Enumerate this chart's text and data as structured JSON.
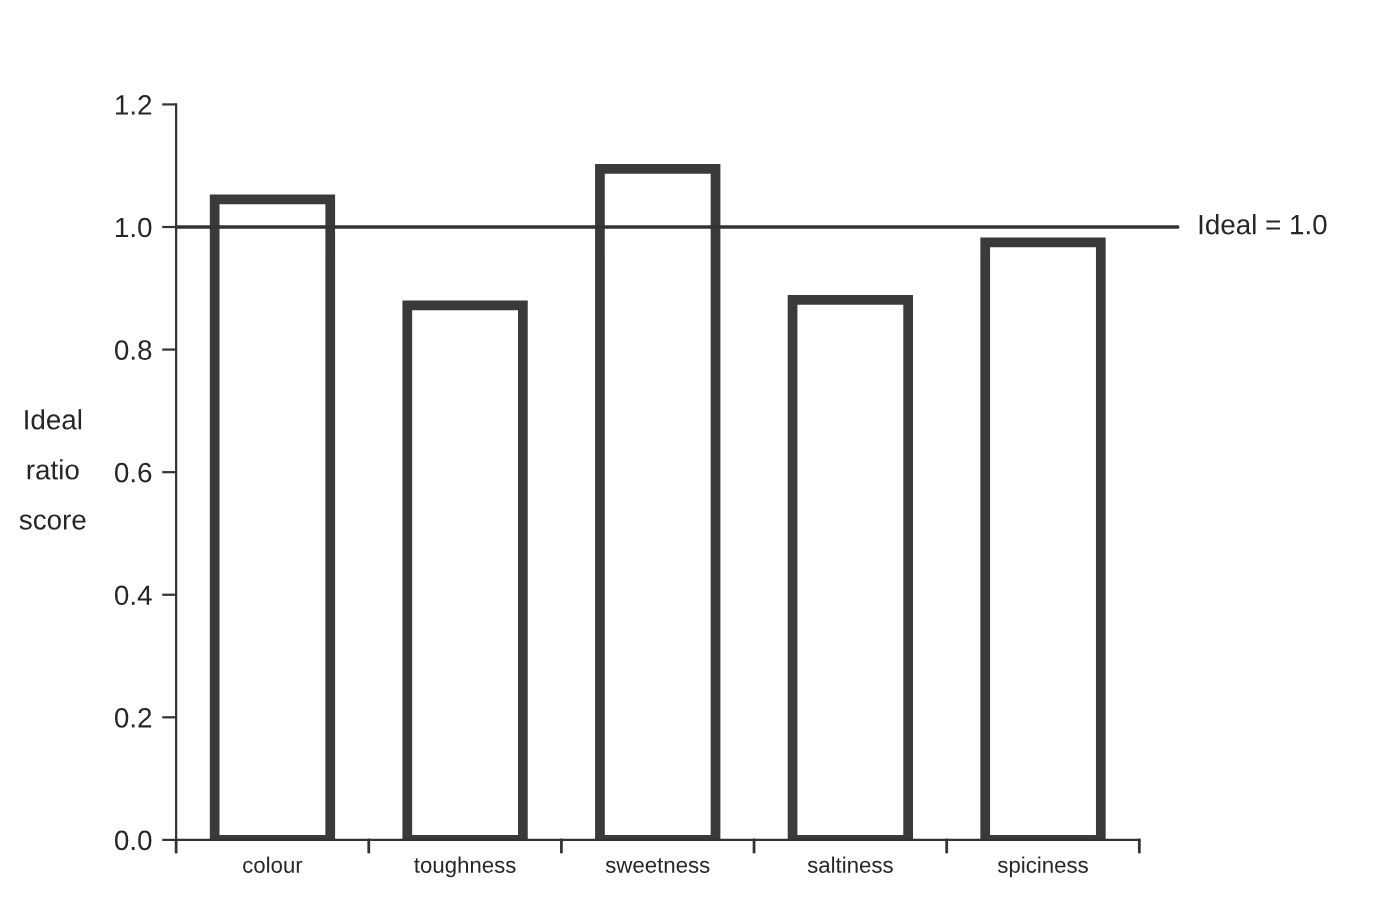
{
  "chart_data": {
    "type": "bar",
    "ylabel": "Ideal\nratio\nscore",
    "categories": [
      "colour",
      "toughness",
      "sweetness",
      "saltiness",
      "spiciness"
    ],
    "values": [
      1.045,
      0.872,
      1.095,
      0.881,
      0.975
    ],
    "color": "#3a3a3a",
    "ylim": [
      0,
      1.2
    ],
    "yticks": [
      {
        "value": 0,
        "label": "0.0"
      },
      {
        "value": 0.2,
        "label": "0.2"
      },
      {
        "value": 0.4,
        "label": "0.4"
      },
      {
        "value": 0.6,
        "label": "0.6"
      },
      {
        "value": 0.8,
        "label": "0.8"
      },
      {
        "value": 1.0,
        "label": "1.0"
      },
      {
        "value": 1.2,
        "label": "1.2"
      }
    ],
    "ref_lines": [
      {
        "axis": "y",
        "value": 1.0,
        "label": "Ideal = 1.0",
        "color": "#333333"
      }
    ],
    "grid": false,
    "legend": false
  }
}
